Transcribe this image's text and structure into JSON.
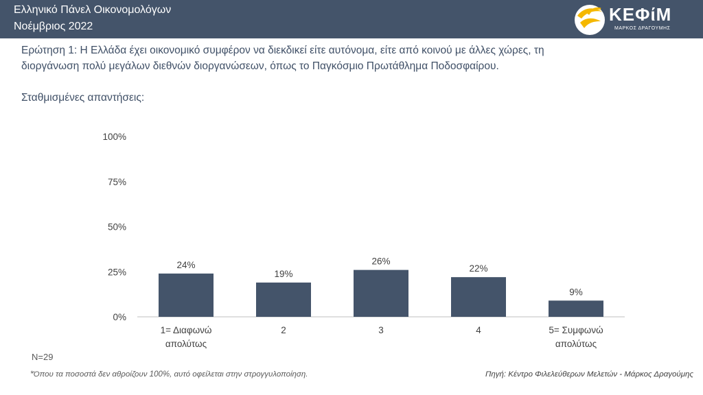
{
  "header": {
    "title": "Ελληνικό Πάνελ Οικονομολόγων",
    "date": "Νοέμβριος 2022"
  },
  "logo": {
    "name": "ΚΕΦίΜ",
    "tagline": "ΜΑΡΚΟΣ ΔΡΑΓΟΥΜΗΣ",
    "icon": "bird-wave-logo-icon"
  },
  "question": {
    "line1": "Ερώτηση 1:  Η Ελλάδα έχει οικονομικό συμφέρον να διεκδικεί είτε αυτόνομα, είτε από κοινού με άλλες χώρες, τη",
    "line2": "διοργάνωση πολύ μεγάλων διεθνών διοργανώσεων, όπως το Παγκόσμιο Πρωτάθλημα Ποδοσφαίρου."
  },
  "weighted_label": "Σταθμισμένες απαντήσεις:",
  "chart_data": {
    "type": "bar",
    "categories": [
      [
        "1= Διαφωνώ",
        "απολύτως"
      ],
      [
        "2"
      ],
      [
        "3"
      ],
      [
        "4"
      ],
      [
        "5= Συμφωνώ",
        "απολύτως"
      ]
    ],
    "values": [
      24,
      19,
      26,
      22,
      9
    ],
    "value_labels": [
      "24%",
      "19%",
      "26%",
      "22%",
      "9%"
    ],
    "ylim": [
      0,
      100
    ],
    "yticks": [
      0,
      25,
      50,
      75,
      100
    ],
    "ytick_labels": [
      "0%",
      "25%",
      "50%",
      "75%",
      "100%"
    ],
    "grid": false,
    "colors": {
      "bar": "#44546a",
      "axis": "#bfbfbf",
      "text": "#404040"
    }
  },
  "footer": {
    "n": "N=29",
    "note": "*Όπου τα ποσοστά δεν αθροίζουν 100%, αυτό οφείλεται στην στρογγυλοποίηση.",
    "source": "Πηγή: Κέντρο Φιλελεύθερων Μελετών - Μάρκος Δραγούμης"
  }
}
